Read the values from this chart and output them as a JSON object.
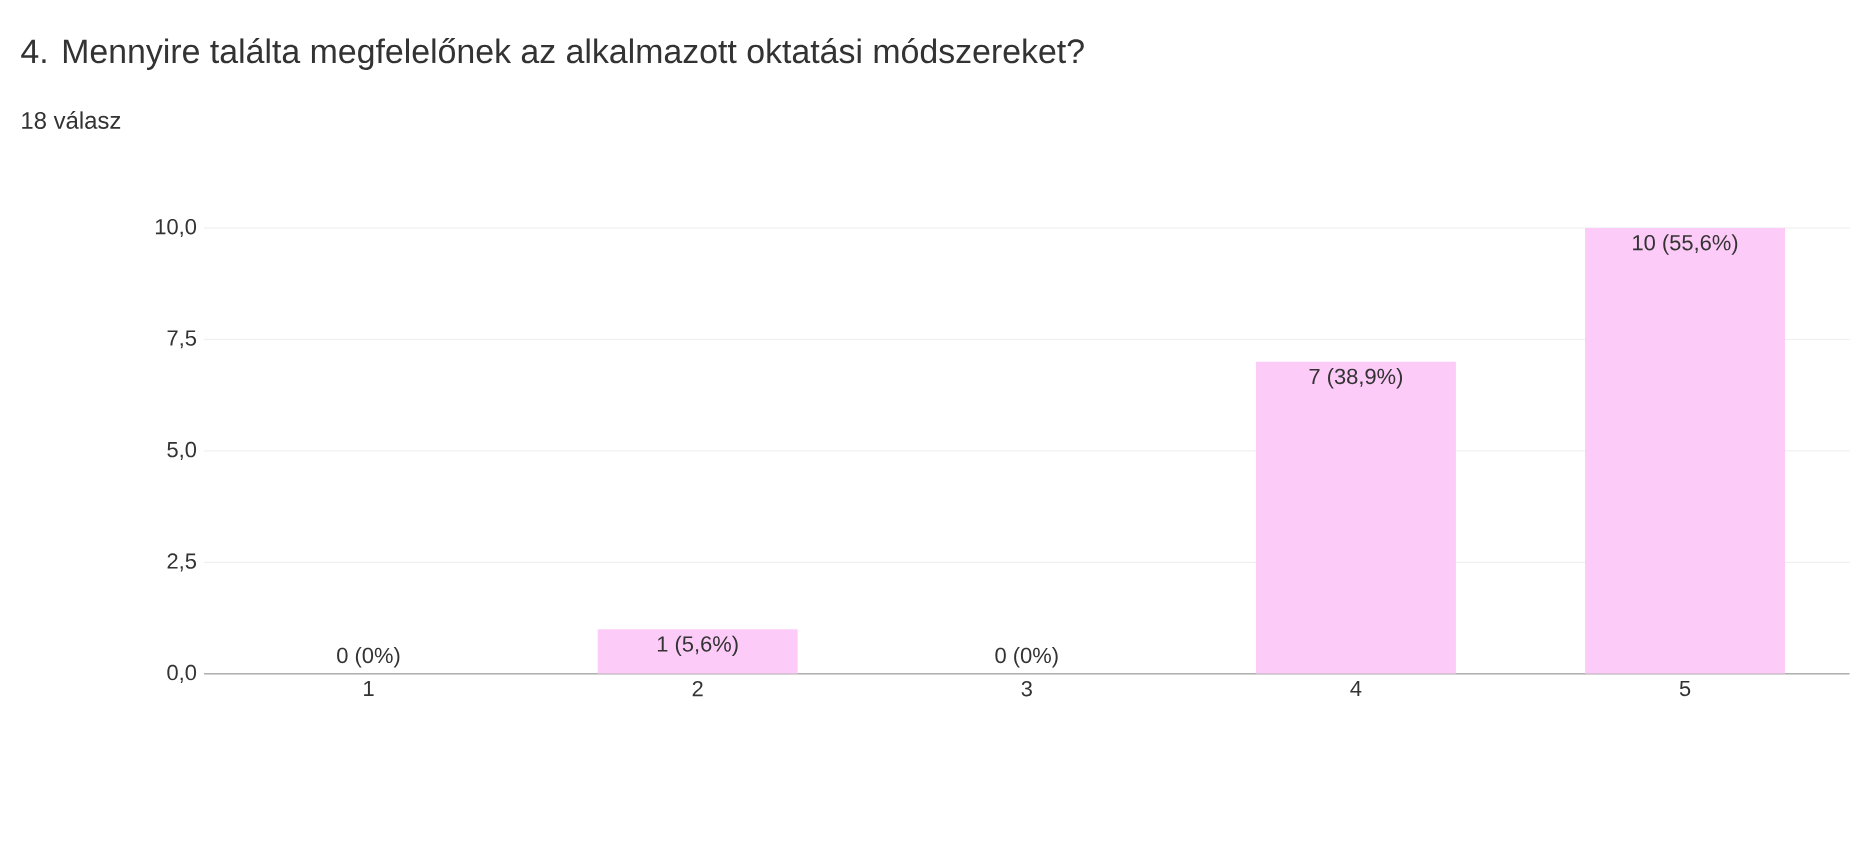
{
  "chart_data": {
    "type": "bar",
    "title": "4. Mennyire találta megfelelőnek az alkalmazott oktatási módszereket?",
    "subtitle": "18 válasz",
    "categories": [
      "1",
      "2",
      "3",
      "4",
      "5"
    ],
    "values": [
      0,
      1,
      0,
      7,
      10
    ],
    "value_labels": [
      "0 (0%)",
      "1 (5,6%)",
      "0 (0%)",
      "7 (38,9%)",
      "10 (55,6%)"
    ],
    "color": "#fccbf7",
    "ylim": [
      0,
      10
    ],
    "yticks": [
      {
        "value": 0,
        "label": "0,0"
      },
      {
        "value": 2.5,
        "label": "2,5"
      },
      {
        "value": 5,
        "label": "5,0"
      },
      {
        "value": 7.5,
        "label": "7,5"
      },
      {
        "value": 10,
        "label": "10,0"
      }
    ],
    "grid": "y"
  }
}
